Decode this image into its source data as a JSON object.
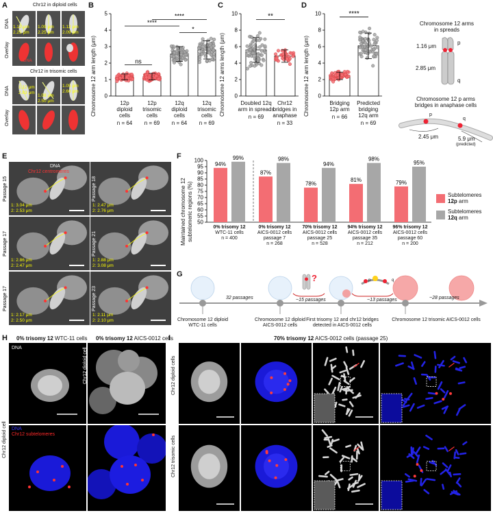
{
  "colors": {
    "pink": "#f36d73",
    "grey": "#a7a7a7",
    "gridgrey": "#bdbdbd",
    "yellow": "#ffff00",
    "red": "#ff2020",
    "blue": "#1a1ad8"
  },
  "panel_letters": [
    "A",
    "B",
    "C",
    "D",
    "E",
    "F",
    "G",
    "H",
    "I"
  ],
  "a": {
    "title_diploid": "Chr12 in diploid cells",
    "title_trisomic": "Chr12 in trisomic cells",
    "row_dna": "DNA",
    "row_overlay": "Overlay",
    "dna_label": "DNA",
    "meas_diploid": [
      [
        "1.12 μm",
        "2.25 μm"
      ],
      [
        "1.09 μm",
        "2.25 μm"
      ],
      [
        "1.12 μm",
        "2.09 μm"
      ]
    ],
    "meas_trisomic": [
      [
        "1.12 μm",
        "2.83 μm"
      ],
      [
        "1.08 μm",
        "2.50 μm"
      ],
      [
        "1.05 μm",
        "2.60 μm"
      ]
    ]
  },
  "b": {
    "ylabel": "Chromosome 12 arm length (μm)",
    "yticks": [
      "0",
      "1",
      "2",
      "3",
      "4",
      "5"
    ],
    "groups": [
      {
        "label": "12p\ndiploid\ncells",
        "n": "n = 64"
      },
      {
        "label": "12p\ntrisomic\ncells",
        "n": "n = 69"
      },
      {
        "label": "12q\ndiploid\ncells",
        "n": "n = 64"
      },
      {
        "label": "12q\ntrisomic\ncells",
        "n": "n = 69"
      }
    ],
    "sig": [
      "ns",
      "****",
      "****",
      "*"
    ]
  },
  "c": {
    "ylabel": "Chromosome 12 arms length (μm)",
    "yticks": [
      "0",
      "2",
      "4",
      "6",
      "8",
      "10"
    ],
    "groups": [
      {
        "label": "Doubled 12q\narm in spreads",
        "n": "n = 69"
      },
      {
        "label": "Chr12\nbridges in\nanaphase",
        "n": "n = 33"
      }
    ],
    "sig": "**"
  },
  "d": {
    "ylabel": "Chromosome 12 arm length (μm)",
    "yticks": [
      "0",
      "2",
      "4",
      "6",
      "8",
      "10"
    ],
    "groups": [
      {
        "label": "Bridging\n12p arm",
        "n": "n = 66"
      },
      {
        "label": "Predicted\nbridging\n12q arm",
        "n": "n = 69"
      }
    ],
    "sig": "****",
    "spreads_title": "Chromosome 12 arms\nin spreads",
    "p": "p",
    "q": "q",
    "len_p": "1.16 μm",
    "len_q": "2.85 μm",
    "bridge_title": "Chromosome 12 p arms\nbridges in anaphase cells",
    "len_bridge_p": "2.45 μm",
    "len_bridge_q": "5.9 μm",
    "predicted": "(predicted)"
  },
  "e": {
    "dna": "DNA",
    "centromeres": "Chr12 centromeres",
    "panels": [
      {
        "passage": "Passage 15",
        "m1": "1: 3.04 μm",
        "m2": "2: 2.53 μm"
      },
      {
        "passage": "Passage 18",
        "m1": "1: 2.47 μm",
        "m2": "2: 2.76 μm"
      },
      {
        "passage": "Passage 17",
        "m1": "1: 2.86 μm",
        "m2": "2: 2.47 μm"
      },
      {
        "passage": "Passage 21",
        "m1": "1: 2.88 μm",
        "m2": "2: 3.08 μm"
      },
      {
        "passage": "Passage 17",
        "m1": "1: 2.17 μm",
        "m2": "2: 2.50 μm"
      },
      {
        "passage": "Passage 23",
        "m1": "1: 2.11 μm",
        "m2": "2: 2.10 μm"
      }
    ]
  },
  "chart_data": {
    "type": "bar",
    "ylabel": "Maintained chromosome 12\nsubtelomeric regions (%)",
    "ylim": [
      50,
      100
    ],
    "yticks": [
      "50",
      "55",
      "60",
      "65",
      "70",
      "75",
      "80",
      "85",
      "90",
      "95",
      "100"
    ],
    "groups": [
      {
        "line1": "0% trisomy 12",
        "line2": "WTC-11 cells",
        "line3": "",
        "n": "n = 400"
      },
      {
        "line1": "0% trisomy 12",
        "line2": "AICS-0012 cells",
        "line3": "passage 7",
        "n": "n = 268"
      },
      {
        "line1": "70% trisomy 12",
        "line2": "AICS-0012 cells",
        "line3": "passage 25",
        "n": "n = 528"
      },
      {
        "line1": "94% trisomy 12",
        "line2": "AICS-0012 cells",
        "line3": "passage 35",
        "n": "n = 212"
      },
      {
        "line1": "96% trisomy 12",
        "line2": "AICS-0012 cells",
        "line3": "passage 60",
        "n": "n = 200"
      }
    ],
    "series": [
      {
        "name": "Subtelomeres 12p arm",
        "values": [
          94,
          87,
          78,
          81,
          79
        ],
        "labels": [
          "94%",
          "87%",
          "78%",
          "81%",
          "79%"
        ]
      },
      {
        "name": "Subtelomeres 12q arm",
        "values": [
          99,
          98,
          94,
          98,
          95
        ],
        "labels": [
          "99%",
          "98%",
          "94%",
          "98%",
          "95%"
        ]
      }
    ],
    "legend_p": [
      "Subtelomeres ",
      "12p",
      " arm"
    ],
    "legend_q": [
      "Subtelomeres ",
      "12q",
      " arm"
    ]
  },
  "g": {
    "steps": [
      "32 passages",
      "~15 passages",
      "~13 passages",
      "~28 passages"
    ],
    "nodes": [
      "Chromosome 12 diploid\nWTC-11 cells",
      "Chromosome 12 diploid\nAICS-0012 cells",
      "First trisomy 12 and chr12 bridges\ndetected in AICS-0012 cells",
      "Chromosome 12 trisomic AICS-0012 cells"
    ],
    "qmark": "?",
    "p": "p",
    "q": "q"
  },
  "h": {
    "title1_b": "0% trisomy 12",
    "title1_r": " WTC-11 cells",
    "title2_b": "0% trisomy 12",
    "title2_r": " AICS-0012 cells",
    "dna": "DNA",
    "subtel": "Chr12 subtelomeres",
    "side": "Chr12 diploid cell"
  },
  "i": {
    "title_b": "70% trisomy 12",
    "title_r": " AICS-0012 cells (passage 25)",
    "row1": "Chr12 diploid cells",
    "row2": "Chr12 trisomic cells"
  }
}
